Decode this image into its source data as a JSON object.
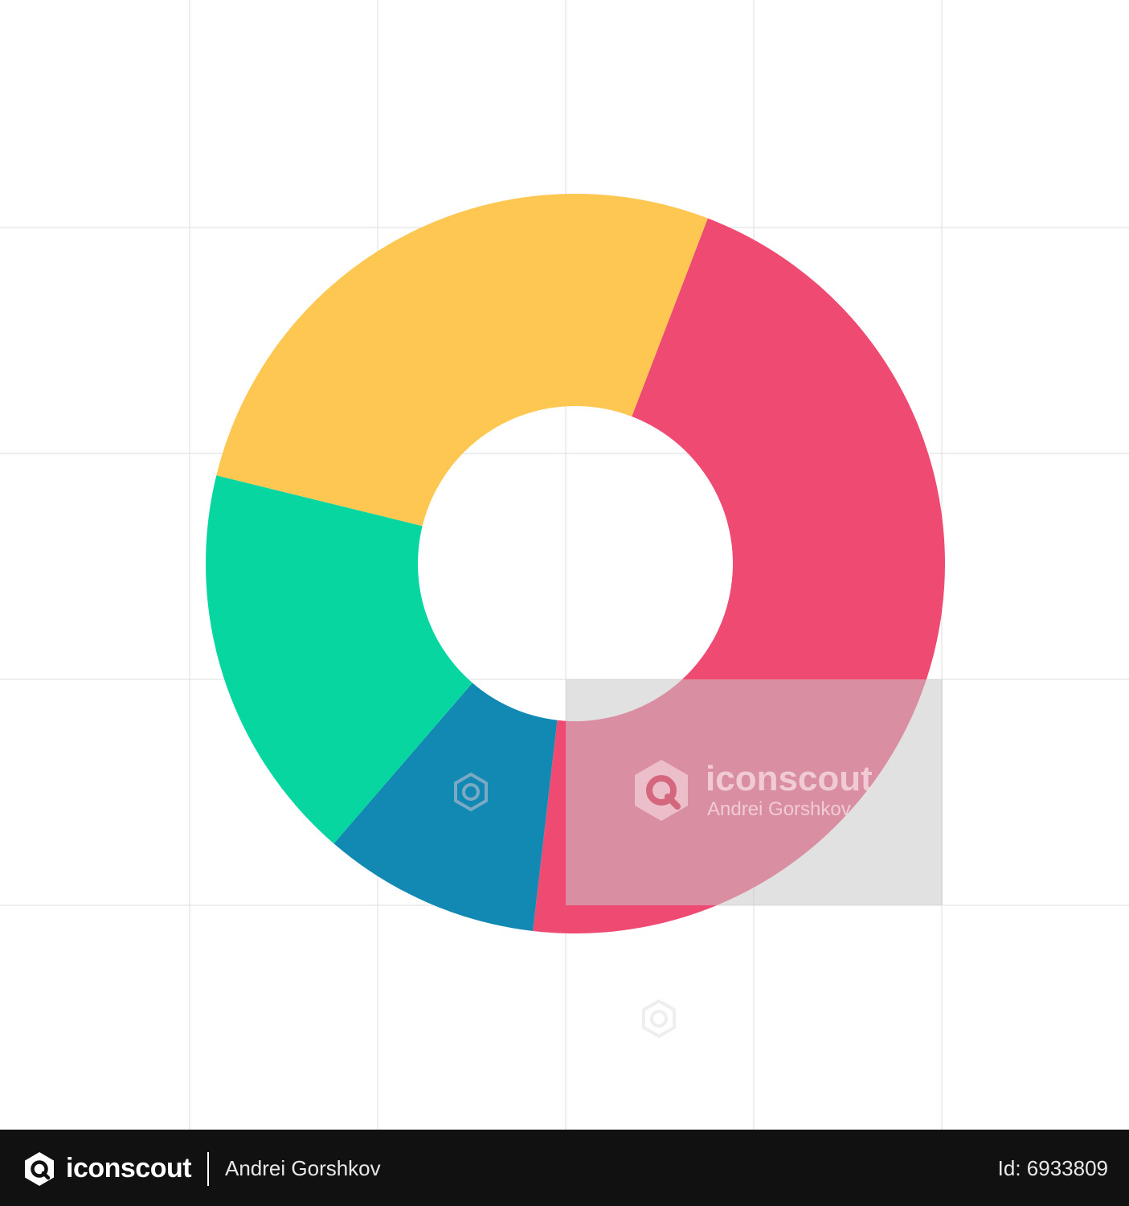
{
  "colors": {
    "yellow": "#FDC752",
    "pink": "#EE4A72",
    "teal": "#07D6A0",
    "blue": "#1289B2",
    "grid": "#E3E3E3",
    "background": "#FFFFFF",
    "footer_bg": "#111111",
    "watermark_box": "#C8C8C8"
  },
  "chart_data": {
    "type": "pie",
    "variant": "donut",
    "start": "top",
    "direction": "clockwise",
    "title": "",
    "slices": [
      {
        "value": 46,
        "color": "#EE4A72"
      },
      {
        "value": 9.5,
        "color": "#1289B2"
      },
      {
        "value": 17.5,
        "color": "#07D6A0"
      },
      {
        "value": 27,
        "color": "#FDC752"
      }
    ],
    "grid": true
  },
  "watermark": {
    "brand": "iconscout",
    "author": "Andrei Gorshkov",
    "logo_icon": "iconscout-logo-icon"
  },
  "footer": {
    "brand": "iconscout",
    "author": "Andrei Gorshkov",
    "asset_id": "Id: 6933809",
    "logo_icon": "iconscout-logo-icon"
  }
}
